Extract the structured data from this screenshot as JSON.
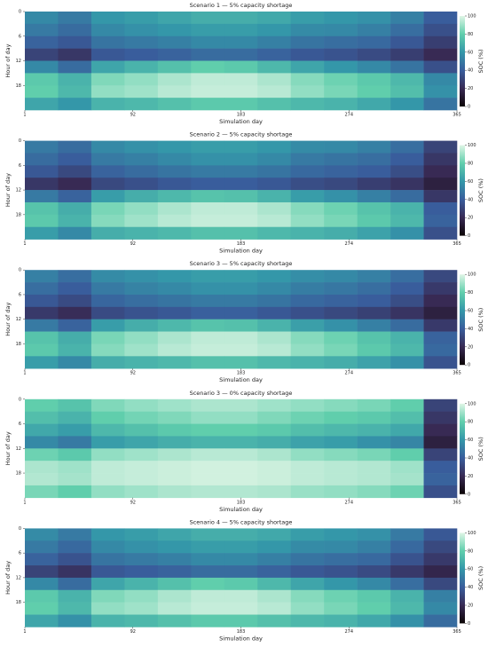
{
  "chart_data": [
    {
      "type": "heatmap",
      "title": "Scenario 1 — 5% capacity shortage",
      "xlabel": "Simulation day",
      "ylabel": "Hour of day",
      "colorbar_label": "SOC (%)",
      "day_bins": [
        1,
        29,
        57,
        85,
        113,
        141,
        169,
        197,
        225,
        253,
        281,
        309,
        337,
        365
      ],
      "hour_bins": [
        0,
        3,
        6,
        9,
        12,
        15,
        18,
        21,
        24
      ],
      "xlim": [
        1,
        365
      ],
      "xticks": [
        1,
        92,
        183,
        274,
        365
      ],
      "ylim": [
        0,
        24
      ],
      "yticks": [
        0,
        6,
        12,
        18
      ],
      "clim": [
        0,
        100
      ],
      "cticks": [
        0,
        20,
        40,
        60,
        80,
        100
      ],
      "colormap": [
        "#0b0405",
        "#382a54",
        "#395d9c",
        "#3497a9",
        "#60ceac",
        "#def5e5"
      ],
      "values": [
        [
          55,
          50,
          60,
          62,
          65,
          68,
          68,
          66,
          62,
          60,
          58,
          52,
          40
        ],
        [
          50,
          45,
          55,
          58,
          60,
          62,
          62,
          60,
          56,
          55,
          52,
          46,
          35
        ],
        [
          42,
          38,
          48,
          50,
          52,
          55,
          55,
          52,
          48,
          46,
          44,
          38,
          28
        ],
        [
          30,
          25,
          38,
          40,
          42,
          45,
          45,
          42,
          38,
          36,
          33,
          28,
          20
        ],
        [
          55,
          45,
          65,
          70,
          75,
          80,
          78,
          72,
          65,
          60,
          55,
          48,
          35
        ],
        [
          78,
          70,
          85,
          88,
          92,
          95,
          95,
          92,
          86,
          82,
          78,
          72,
          55
        ],
        [
          80,
          72,
          88,
          90,
          94,
          96,
          96,
          94,
          88,
          84,
          80,
          74,
          58
        ],
        [
          65,
          60,
          70,
          72,
          75,
          78,
          78,
          75,
          72,
          70,
          66,
          60,
          48
        ]
      ]
    },
    {
      "type": "heatmap",
      "title": "Scenario 2 — 5% capacity shortage",
      "xlabel": "Simulation day",
      "ylabel": "Hour of day",
      "colorbar_label": "SOC (%)",
      "day_bins": [
        1,
        29,
        57,
        85,
        113,
        141,
        169,
        197,
        225,
        253,
        281,
        309,
        337,
        365
      ],
      "hour_bins": [
        0,
        3,
        6,
        9,
        12,
        15,
        18,
        21,
        24
      ],
      "xlim": [
        1,
        365
      ],
      "xticks": [
        1,
        92,
        183,
        274,
        365
      ],
      "ylim": [
        0,
        24
      ],
      "yticks": [
        0,
        6,
        12,
        18
      ],
      "clim": [
        0,
        100
      ],
      "cticks": [
        0,
        20,
        40,
        60,
        80,
        100
      ],
      "colormap": [
        "#0b0405",
        "#382a54",
        "#395d9c",
        "#3497a9",
        "#60ceac",
        "#def5e5"
      ],
      "values": [
        [
          50,
          45,
          55,
          58,
          60,
          62,
          62,
          60,
          56,
          55,
          52,
          46,
          30
        ],
        [
          45,
          40,
          50,
          52,
          55,
          58,
          58,
          55,
          50,
          48,
          46,
          40,
          25
        ],
        [
          38,
          32,
          42,
          45,
          48,
          50,
          50,
          48,
          44,
          42,
          40,
          34,
          20
        ],
        [
          25,
          20,
          32,
          35,
          38,
          40,
          40,
          38,
          34,
          32,
          28,
          24,
          15
        ],
        [
          50,
          42,
          62,
          68,
          72,
          76,
          75,
          70,
          62,
          58,
          52,
          45,
          25
        ],
        [
          76,
          68,
          84,
          88,
          92,
          95,
          95,
          92,
          86,
          82,
          76,
          70,
          40
        ],
        [
          78,
          70,
          86,
          90,
          94,
          96,
          96,
          94,
          88,
          84,
          78,
          72,
          42
        ],
        [
          62,
          55,
          68,
          70,
          72,
          75,
          75,
          72,
          70,
          68,
          64,
          58,
          35
        ]
      ]
    },
    {
      "type": "heatmap",
      "title": "Scenario 3 — 5% capacity shortage",
      "xlabel": "Simulation day",
      "ylabel": "Hour of day",
      "colorbar_label": "SOC (%)",
      "day_bins": [
        1,
        29,
        57,
        85,
        113,
        141,
        169,
        197,
        225,
        253,
        281,
        309,
        337,
        365
      ],
      "hour_bins": [
        0,
        3,
        6,
        9,
        12,
        15,
        18,
        21,
        24
      ],
      "xlim": [
        1,
        365
      ],
      "xticks": [
        1,
        92,
        183,
        274,
        365
      ],
      "ylim": [
        0,
        24
      ],
      "yticks": [
        0,
        6,
        12,
        18
      ],
      "clim": [
        0,
        100
      ],
      "cticks": [
        0,
        20,
        40,
        60,
        80,
        100
      ],
      "colormap": [
        "#0b0405",
        "#382a54",
        "#395d9c",
        "#3497a9",
        "#60ceac",
        "#def5e5"
      ],
      "values": [
        [
          52,
          46,
          56,
          58,
          60,
          62,
          62,
          60,
          57,
          55,
          52,
          46,
          32
        ],
        [
          46,
          40,
          50,
          53,
          55,
          58,
          58,
          55,
          51,
          49,
          46,
          40,
          26
        ],
        [
          38,
          33,
          43,
          46,
          48,
          50,
          50,
          48,
          44,
          42,
          40,
          34,
          20
        ],
        [
          26,
          21,
          33,
          36,
          38,
          41,
          41,
          38,
          35,
          32,
          29,
          24,
          15
        ],
        [
          50,
          42,
          62,
          68,
          72,
          76,
          75,
          70,
          63,
          58,
          52,
          45,
          26
        ],
        [
          76,
          68,
          84,
          88,
          92,
          95,
          95,
          92,
          86,
          82,
          76,
          70,
          42
        ],
        [
          78,
          70,
          86,
          90,
          94,
          96,
          96,
          94,
          88,
          84,
          78,
          72,
          44
        ],
        [
          62,
          55,
          68,
          70,
          72,
          75,
          75,
          72,
          70,
          68,
          64,
          58,
          36
        ]
      ]
    },
    {
      "type": "heatmap",
      "title": "Scenario 3 — 0% capacity shortage",
      "xlabel": "Simulation day",
      "ylabel": "Hour of day",
      "colorbar_label": "SOC (%)",
      "day_bins": [
        1,
        29,
        57,
        85,
        113,
        141,
        169,
        197,
        225,
        253,
        281,
        309,
        337,
        365
      ],
      "hour_bins": [
        0,
        3,
        6,
        9,
        12,
        15,
        18,
        21,
        24
      ],
      "xlim": [
        1,
        365
      ],
      "xticks": [
        1,
        92,
        183,
        274,
        365
      ],
      "ylim": [
        0,
        24
      ],
      "yticks": [
        0,
        6,
        12,
        18
      ],
      "clim": [
        0,
        100
      ],
      "cticks": [
        0,
        20,
        40,
        60,
        80,
        100
      ],
      "colormap": [
        "#0b0405",
        "#382a54",
        "#395d9c",
        "#3497a9",
        "#60ceac",
        "#def5e5"
      ],
      "values": [
        [
          80,
          76,
          85,
          88,
          90,
          92,
          92,
          90,
          88,
          86,
          84,
          80,
          30
        ],
        [
          74,
          70,
          80,
          83,
          85,
          88,
          88,
          85,
          82,
          80,
          78,
          74,
          25
        ],
        [
          66,
          62,
          72,
          75,
          78,
          80,
          80,
          78,
          74,
          72,
          70,
          66,
          20
        ],
        [
          55,
          50,
          62,
          65,
          68,
          70,
          70,
          68,
          64,
          62,
          58,
          54,
          15
        ],
        [
          82,
          78,
          88,
          90,
          92,
          94,
          94,
          92,
          88,
          86,
          84,
          80,
          30
        ],
        [
          92,
          90,
          95,
          96,
          97,
          98,
          98,
          97,
          95,
          94,
          93,
          90,
          40
        ],
        [
          93,
          91,
          95,
          96,
          97,
          98,
          98,
          97,
          95,
          94,
          93,
          91,
          42
        ],
        [
          84,
          80,
          88,
          90,
          92,
          93,
          93,
          92,
          89,
          88,
          86,
          82,
          35
        ]
      ]
    },
    {
      "type": "heatmap",
      "title": "Scenario 4 — 5% capacity shortage",
      "xlabel": "Simulation day",
      "ylabel": "Hour of day",
      "colorbar_label": "SOC (%)",
      "day_bins": [
        1,
        29,
        57,
        85,
        113,
        141,
        169,
        197,
        225,
        253,
        281,
        309,
        337,
        365
      ],
      "hour_bins": [
        0,
        3,
        6,
        9,
        12,
        15,
        18,
        21,
        24
      ],
      "xlim": [
        1,
        365
      ],
      "xticks": [
        1,
        92,
        183,
        274,
        365
      ],
      "ylim": [
        0,
        24
      ],
      "yticks": [
        0,
        6,
        12,
        18
      ],
      "clim": [
        0,
        100
      ],
      "cticks": [
        0,
        20,
        40,
        60,
        80,
        100
      ],
      "colormap": [
        "#0b0405",
        "#382a54",
        "#395d9c",
        "#3497a9",
        "#60ceac",
        "#def5e5"
      ],
      "values": [
        [
          56,
          50,
          60,
          62,
          65,
          68,
          68,
          66,
          62,
          60,
          58,
          50,
          38
        ],
        [
          50,
          44,
          55,
          58,
          60,
          62,
          62,
          60,
          56,
          55,
          52,
          44,
          32
        ],
        [
          42,
          36,
          48,
          50,
          52,
          55,
          55,
          52,
          48,
          46,
          44,
          36,
          26
        ],
        [
          30,
          24,
          38,
          40,
          42,
          45,
          45,
          42,
          38,
          36,
          33,
          26,
          18
        ],
        [
          55,
          45,
          65,
          70,
          75,
          80,
          78,
          72,
          65,
          60,
          55,
          46,
          32
        ],
        [
          78,
          70,
          85,
          88,
          92,
          95,
          95,
          92,
          86,
          82,
          78,
          70,
          52
        ],
        [
          80,
          72,
          88,
          90,
          94,
          96,
          96,
          94,
          88,
          84,
          80,
          72,
          55
        ],
        [
          65,
          58,
          70,
          72,
          75,
          78,
          78,
          75,
          72,
          70,
          66,
          58,
          45
        ]
      ]
    }
  ]
}
